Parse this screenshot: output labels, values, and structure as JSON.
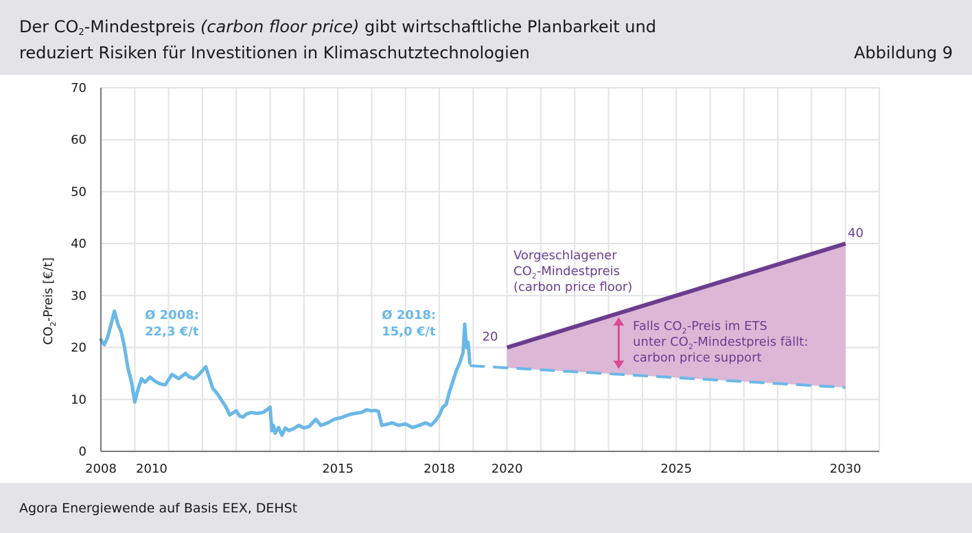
{
  "title": {
    "line1_a": "Der CO",
    "line1_sub": "2",
    "line1_b": "-Mindestpreis ",
    "line1_italic": "(carbon floor price)",
    "line1_c": " gibt wirtschaftliche Planbarkeit und",
    "line2": "reduziert Risiken für Investitionen in Klimaschutztechnologien"
  },
  "figure_label": "Abbildung 9",
  "source": "Agora Energiewende auf Basis EEX, DEHSt",
  "colors": {
    "historical": "#6ab8e6",
    "floor": "#6b3d8f",
    "support_fill": "#dcb8d6",
    "arrow": "#d84d94",
    "grid": "#e3e3e8",
    "axis": "#555555"
  },
  "chart_data": {
    "type": "line",
    "title": "Der CO2-Mindestpreis (carbon floor price) gibt wirtschaftliche Planbarkeit und reduziert Risiken für Investitionen in Klimaschutztechnologien",
    "xlabel": "",
    "ylabel_a": "CO",
    "ylabel_sub": "2",
    "ylabel_b": "-Preis [€/t]",
    "xlim": [
      2008,
      2031
    ],
    "ylim": [
      0,
      70
    ],
    "x_tick_labels": [
      "2008",
      "2010",
      "2015",
      "2018",
      "2020",
      "2025",
      "2030"
    ],
    "x_tick_values": [
      2008,
      2009.5,
      2015,
      2018,
      2020,
      2025,
      2030
    ],
    "y_ticks": [
      0,
      10,
      20,
      30,
      40,
      50,
      60,
      70
    ],
    "grid": true,
    "series": [
      {
        "kind": "historical",
        "x": [
          2008.0,
          2008.1,
          2008.2,
          2008.3,
          2008.4,
          2008.5,
          2008.6,
          2008.7,
          2008.8,
          2008.9,
          2009.0,
          2009.1,
          2009.2,
          2009.3,
          2009.45,
          2009.6,
          2009.75,
          2009.9,
          2010.1,
          2010.3,
          2010.5,
          2010.6,
          2010.75,
          2010.9,
          2011.1,
          2011.3,
          2011.45,
          2011.6,
          2011.7,
          2011.8,
          2012.0,
          2012.1,
          2012.2,
          2012.3,
          2012.45,
          2012.6,
          2012.8,
          2013.0,
          2013.05,
          2013.1,
          2013.15,
          2013.25,
          2013.35,
          2013.45,
          2013.55,
          2013.7,
          2013.85,
          2014.0,
          2014.15,
          2014.25,
          2014.35,
          2014.5,
          2014.7,
          2014.9,
          2015.1,
          2015.3,
          2015.5,
          2015.7,
          2015.85,
          2016.0,
          2016.1,
          2016.2,
          2016.3,
          2016.45,
          2016.6,
          2016.8,
          2017.0,
          2017.2,
          2017.4,
          2017.6,
          2017.75,
          2017.9,
          2018.0,
          2018.1,
          2018.2,
          2018.3,
          2018.4,
          2018.5,
          2018.6,
          2018.7,
          2018.75,
          2018.8,
          2018.85,
          2018.9
        ],
        "y": [
          21.5,
          20.5,
          22.0,
          24.5,
          27.0,
          24.5,
          23.0,
          20.0,
          16.0,
          13.5,
          9.5,
          12.0,
          14.0,
          13.3,
          14.3,
          13.5,
          13.0,
          12.8,
          14.8,
          14.0,
          15.0,
          14.4,
          14.0,
          14.8,
          16.3,
          12.2,
          11.0,
          9.5,
          8.5,
          7.0,
          7.8,
          6.8,
          6.6,
          7.2,
          7.5,
          7.3,
          7.5,
          8.5,
          4.0,
          5.0,
          3.5,
          4.6,
          3.1,
          4.5,
          4.0,
          4.4,
          5.0,
          4.5,
          4.8,
          5.5,
          6.2,
          5.0,
          5.5,
          6.2,
          6.5,
          7.0,
          7.3,
          7.5,
          8.0,
          7.8,
          7.9,
          7.7,
          5.0,
          5.2,
          5.5,
          5.0,
          5.3,
          4.6,
          5.0,
          5.5,
          5.0,
          6.0,
          7.0,
          8.5,
          9.0,
          11.5,
          13.5,
          15.5,
          17.0,
          19.0,
          24.5,
          20.0,
          21.0,
          17.0
        ]
      },
      {
        "kind": "trend",
        "x": [
          2018.9,
          2030
        ],
        "y": [
          16.5,
          12.3
        ]
      },
      {
        "kind": "floor",
        "x": [
          2020,
          2030
        ],
        "y": [
          20,
          40
        ]
      }
    ],
    "annotations": [
      {
        "line1": "Ø 2008:",
        "line2": "22,3 €/t",
        "x": 2009.3,
        "y": 25.5
      },
      {
        "line1": "Ø 2018:",
        "line2": "15,0 €/t",
        "x": 2016.3,
        "y": 25.5
      },
      {
        "text": "20",
        "x": 2019.5,
        "y": 21.3
      },
      {
        "text": "40",
        "x": 2030.3,
        "y": 41.3
      }
    ],
    "floor_label": {
      "line1": "Vorgeschlagener",
      "line2_a": "CO",
      "line2_sub": "2",
      "line2_b": "-Mindestpreis",
      "line3": "(carbon price floor)"
    },
    "support_label": {
      "line1_a": "Falls CO",
      "line1_sub": "2",
      "line1_b": "-Preis im ETS",
      "line2_a": "unter CO",
      "line2_sub": "2",
      "line2_b": "-Mindestpreis fällt:",
      "line3": "carbon price support"
    }
  }
}
